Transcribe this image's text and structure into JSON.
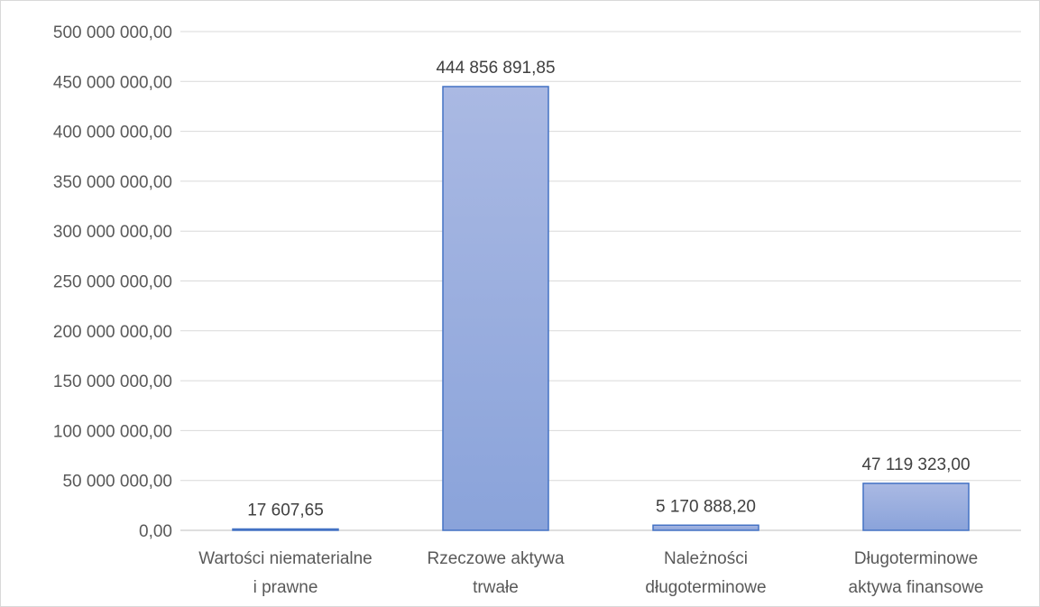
{
  "chart_data": {
    "type": "bar",
    "title": "",
    "xlabel": "",
    "ylabel": "",
    "categories": [
      [
        "Wartości niematerialne",
        "i prawne"
      ],
      [
        "Rzeczowe aktywa",
        "trwałe"
      ],
      [
        "Należności",
        "długoterminowe"
      ],
      [
        "Długoterminowe",
        "aktywa finansowe"
      ]
    ],
    "values": [
      17607.65,
      444856891.85,
      5170888.2,
      47119323.0
    ],
    "value_labels": [
      "17 607,65",
      "444 856 891,85",
      "5 170 888,20",
      "47 119 323,00"
    ],
    "ylim": [
      0,
      500000000
    ],
    "yticks": [
      0,
      50000000,
      100000000,
      150000000,
      200000000,
      250000000,
      300000000,
      350000000,
      400000000,
      450000000,
      500000000
    ],
    "ytick_labels": [
      "0,00",
      "50 000 000,00",
      "100 000 000,00",
      "150 000 000,00",
      "200 000 000,00",
      "250 000 000,00",
      "300 000 000,00",
      "350 000 000,00",
      "400 000 000,00",
      "450 000 000,00",
      "500 000 000,00"
    ],
    "grid": true,
    "legend": "none",
    "colors": {
      "bar_top": "#aab9e3",
      "bar_bottom": "#8aa3da",
      "bar_border": "#4472c4",
      "grid": "#d9d9d9",
      "axis": "#bfbfbf"
    }
  }
}
